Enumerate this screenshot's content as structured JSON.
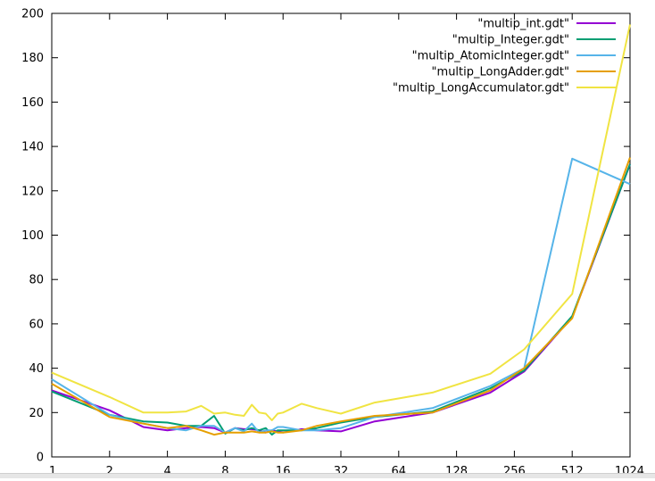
{
  "chart_data": {
    "type": "line",
    "title": "",
    "xlabel": "",
    "ylabel": "",
    "xscale": "log2",
    "x_ticks": [
      1,
      2,
      4,
      8,
      16,
      32,
      64,
      128,
      256,
      512,
      1024
    ],
    "xlim": [
      1,
      1024
    ],
    "ylim": [
      0,
      200
    ],
    "y_ticks": [
      0,
      20,
      40,
      60,
      80,
      100,
      120,
      140,
      160,
      180,
      200
    ],
    "grid": false,
    "legend_position": "top-right",
    "series": [
      {
        "name": "\"multip_int.gdt\"",
        "color": "#9400d3",
        "points": [
          [
            1,
            30
          ],
          [
            2,
            21
          ],
          [
            3,
            13.5
          ],
          [
            4,
            12
          ],
          [
            5,
            13
          ],
          [
            6,
            13.5
          ],
          [
            7,
            13
          ],
          [
            8,
            11
          ],
          [
            9,
            13
          ],
          [
            10,
            12.5
          ],
          [
            11,
            12.5
          ],
          [
            12,
            12
          ],
          [
            13,
            11
          ],
          [
            14,
            12
          ],
          [
            15,
            11.5
          ],
          [
            16,
            11
          ],
          [
            20,
            12.5
          ],
          [
            24,
            12
          ],
          [
            32,
            11.5
          ],
          [
            48,
            16
          ],
          [
            96,
            20
          ],
          [
            192,
            29
          ],
          [
            288,
            38.5
          ],
          [
            512,
            63
          ],
          [
            1024,
            132
          ]
        ]
      },
      {
        "name": "\"multip_Integer.gdt\"",
        "color": "#009e73",
        "points": [
          [
            1,
            29.5
          ],
          [
            2,
            19
          ],
          [
            3,
            16
          ],
          [
            4,
            15.5
          ],
          [
            5,
            14
          ],
          [
            6,
            14
          ],
          [
            7,
            18.5
          ],
          [
            8,
            10.5
          ],
          [
            9,
            13
          ],
          [
            10,
            12
          ],
          [
            11,
            13
          ],
          [
            12,
            12
          ],
          [
            13,
            13
          ],
          [
            14,
            10
          ],
          [
            15,
            12
          ],
          [
            16,
            12
          ],
          [
            20,
            12
          ],
          [
            24,
            13
          ],
          [
            32,
            15.5
          ],
          [
            48,
            18
          ],
          [
            96,
            20.5
          ],
          [
            192,
            31
          ],
          [
            288,
            39
          ],
          [
            512,
            63.5
          ],
          [
            1024,
            132
          ]
        ]
      },
      {
        "name": "\"multip_AtomicInteger.gdt\"",
        "color": "#56b4e9",
        "points": [
          [
            1,
            35
          ],
          [
            2,
            19
          ],
          [
            3,
            15
          ],
          [
            4,
            13
          ],
          [
            5,
            12
          ],
          [
            6,
            14
          ],
          [
            7,
            14
          ],
          [
            8,
            11
          ],
          [
            9,
            13
          ],
          [
            10,
            11.5
          ],
          [
            11,
            15
          ],
          [
            12,
            11
          ],
          [
            13,
            12
          ],
          [
            14,
            12
          ],
          [
            15,
            13.5
          ],
          [
            16,
            13.5
          ],
          [
            20,
            12
          ],
          [
            24,
            12
          ],
          [
            32,
            13
          ],
          [
            48,
            18
          ],
          [
            96,
            22
          ],
          [
            192,
            32
          ],
          [
            288,
            40
          ],
          [
            512,
            134.5
          ],
          [
            1024,
            123
          ]
        ]
      },
      {
        "name": "\"multip_LongAdder.gdt\"",
        "color": "#e69f00",
        "points": [
          [
            1,
            33
          ],
          [
            2,
            18
          ],
          [
            3,
            15
          ],
          [
            4,
            13
          ],
          [
            5,
            14
          ],
          [
            6,
            12
          ],
          [
            7,
            10
          ],
          [
            8,
            11
          ],
          [
            9,
            11
          ],
          [
            10,
            11
          ],
          [
            11,
            11.5
          ],
          [
            12,
            11
          ],
          [
            13,
            11
          ],
          [
            14,
            11.5
          ],
          [
            15,
            11
          ],
          [
            16,
            11
          ],
          [
            20,
            12
          ],
          [
            24,
            14
          ],
          [
            32,
            16
          ],
          [
            48,
            18.5
          ],
          [
            96,
            20
          ],
          [
            192,
            30
          ],
          [
            288,
            40
          ],
          [
            512,
            62.5
          ],
          [
            1024,
            135
          ]
        ]
      },
      {
        "name": "\"multip_LongAccumulator.gdt\"",
        "color": "#f0e442",
        "points": [
          [
            1,
            38
          ],
          [
            2,
            27
          ],
          [
            3,
            20
          ],
          [
            4,
            20
          ],
          [
            5,
            20.5
          ],
          [
            6,
            23
          ],
          [
            7,
            19.5
          ],
          [
            8,
            20
          ],
          [
            9,
            19
          ],
          [
            10,
            18.5
          ],
          [
            11,
            23.5
          ],
          [
            12,
            20
          ],
          [
            13,
            19.5
          ],
          [
            14,
            16.5
          ],
          [
            15,
            19.5
          ],
          [
            16,
            20
          ],
          [
            20,
            24
          ],
          [
            24,
            22
          ],
          [
            32,
            19.5
          ],
          [
            48,
            24.5
          ],
          [
            96,
            29
          ],
          [
            192,
            37.5
          ],
          [
            288,
            48.5
          ],
          [
            512,
            73.5
          ],
          [
            1024,
            195
          ]
        ]
      }
    ]
  }
}
